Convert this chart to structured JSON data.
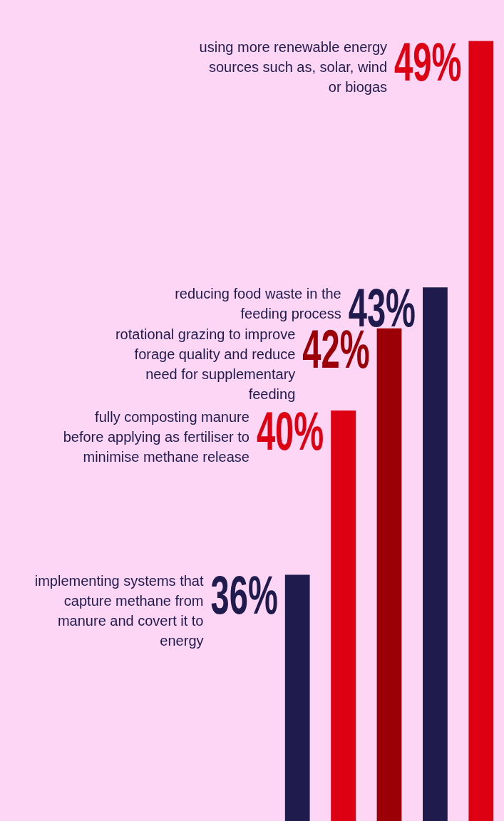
{
  "chart_data": {
    "type": "bar",
    "categories": [
      null,
      null,
      null,
      null,
      null
    ],
    "annotations": [
      "implementing systems that capture methane from manure and covert it to energy",
      "fully composting manure before applying as fertiliser to minimise methane release",
      "rotational grazing to improve forage quality and reduce need for supplementary feeding",
      "reducing food waste in the feeding process",
      "using more renewable energy sources such as, solar, wind or biogas"
    ],
    "values": [
      36,
      40,
      42,
      43,
      49
    ],
    "value_labels": [
      "36%",
      "40%",
      "42%",
      "43%",
      "49%"
    ],
    "colors": [
      "#1f1b4d",
      "#dc0012",
      "#9b0006",
      "#1f1b4d",
      "#dc0012"
    ],
    "ylim": [
      30,
      50
    ]
  }
}
